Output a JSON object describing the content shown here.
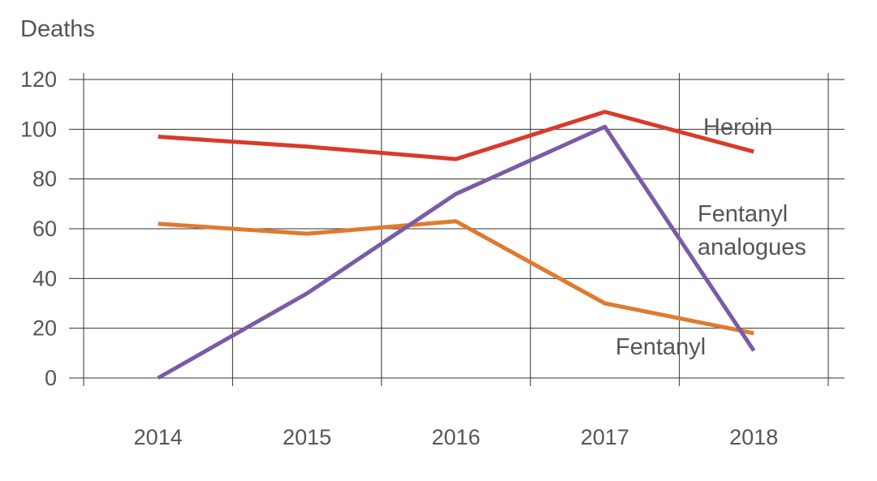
{
  "chart_data": {
    "type": "line",
    "title": "",
    "ylabel": "Deaths",
    "xlabel": "",
    "categories": [
      "2014",
      "2015",
      "2016",
      "2017",
      "2018"
    ],
    "ylim": [
      0,
      120
    ],
    "yticks": [
      0,
      20,
      40,
      60,
      80,
      100,
      120
    ],
    "grid": true,
    "series": [
      {
        "name": "Heroin",
        "color": "#d93a2b",
        "values": [
          97,
          93,
          88,
          107,
          91
        ]
      },
      {
        "name": "Fentanyl",
        "color": "#e07a2e",
        "values": [
          62,
          58,
          63,
          30,
          18
        ]
      },
      {
        "name": "Fentanyl analogues",
        "color": "#7b5aa6",
        "values": [
          0,
          34,
          74,
          101,
          11
        ]
      }
    ],
    "labels": {
      "heroin": "Heroin",
      "fentanyl": "Fentanyl",
      "analogues_line1": "Fentanyl",
      "analogues_line2": "analogues"
    }
  }
}
